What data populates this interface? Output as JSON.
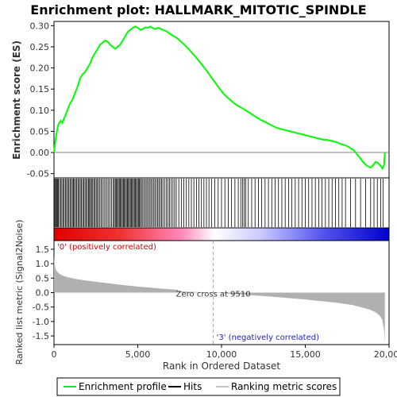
{
  "chart_data": {
    "type": "line",
    "title": "Enrichment plot: HALLMARK_MITOTIC_SPINDLE",
    "enrichment_panel": {
      "ylabel": "Enrichment score (ES)",
      "ylim": [
        -0.06,
        0.31
      ],
      "yticks": [
        -0.05,
        0.0,
        0.05,
        0.1,
        0.15,
        0.2,
        0.25,
        0.3
      ],
      "ytick_labels": [
        "-0.05",
        "0.00",
        "0.05",
        "0.10",
        "0.15",
        "0.20",
        "0.25",
        "0.30"
      ],
      "line_color": "#00ff00",
      "series": [
        {
          "x": [
            0,
            60,
            150,
            250,
            400,
            500,
            650,
            800,
            950,
            1100,
            1250,
            1400,
            1550,
            1700,
            1850,
            2000,
            2150,
            2300,
            2450,
            2600,
            2750,
            2900,
            3050,
            3200,
            3350,
            3500,
            3650,
            3800,
            3950,
            4100,
            4250,
            4400,
            4550,
            4700,
            4850,
            5000,
            5150,
            5300,
            5450,
            5600,
            5750,
            5900,
            6050,
            6200,
            6350,
            6500,
            6650,
            6800,
            6950,
            7100,
            7300,
            7500,
            7700,
            7900,
            8100,
            8300,
            8500,
            8700,
            8900,
            9100,
            9300,
            9500,
            9700,
            9900,
            10100,
            10300,
            10500,
            10700,
            10900,
            11100,
            11300,
            11500,
            11700,
            11900,
            12100,
            12300,
            12500,
            12700,
            12900,
            13100,
            13300,
            13500,
            13700,
            13900,
            14100,
            14300,
            14500,
            14700,
            14900,
            15100,
            15300,
            15500,
            15700,
            15900,
            16100,
            16300,
            16500,
            16700,
            16900,
            17100,
            17300,
            17500,
            17700,
            17900,
            18100,
            18300,
            18500,
            18700,
            18900,
            19050,
            19200,
            19350,
            19500,
            19600,
            19700,
            19750
          ],
          "y": [
            0.0,
            0.02,
            0.045,
            0.065,
            0.075,
            0.07,
            0.085,
            0.1,
            0.115,
            0.125,
            0.14,
            0.155,
            0.175,
            0.185,
            0.19,
            0.2,
            0.21,
            0.225,
            0.235,
            0.245,
            0.255,
            0.26,
            0.265,
            0.262,
            0.255,
            0.25,
            0.245,
            0.25,
            0.255,
            0.265,
            0.275,
            0.285,
            0.29,
            0.295,
            0.298,
            0.295,
            0.29,
            0.292,
            0.296,
            0.295,
            0.298,
            0.294,
            0.292,
            0.295,
            0.293,
            0.29,
            0.288,
            0.284,
            0.28,
            0.276,
            0.272,
            0.265,
            0.258,
            0.25,
            0.242,
            0.233,
            0.224,
            0.214,
            0.204,
            0.194,
            0.183,
            0.172,
            0.161,
            0.15,
            0.14,
            0.132,
            0.125,
            0.118,
            0.112,
            0.108,
            0.103,
            0.098,
            0.093,
            0.088,
            0.083,
            0.078,
            0.074,
            0.07,
            0.066,
            0.062,
            0.058,
            0.056,
            0.054,
            0.052,
            0.05,
            0.048,
            0.046,
            0.044,
            0.042,
            0.04,
            0.038,
            0.036,
            0.034,
            0.032,
            0.03,
            0.03,
            0.028,
            0.026,
            0.024,
            0.02,
            0.018,
            0.015,
            0.01,
            0.005,
            -0.005,
            -0.015,
            -0.025,
            -0.032,
            -0.036,
            -0.03,
            -0.022,
            -0.025,
            -0.032,
            -0.038,
            -0.03,
            0.0
          ]
        }
      ]
    },
    "hits_panel": {
      "hit_positions": [
        20,
        60,
        110,
        160,
        210,
        260,
        330,
        400,
        470,
        540,
        610,
        680,
        750,
        820,
        890,
        960,
        1030,
        1100,
        1160,
        1220,
        1290,
        1360,
        1430,
        1500,
        1570,
        1640,
        1710,
        1780,
        1850,
        1920,
        1990,
        2060,
        2120,
        2180,
        2240,
        2310,
        2380,
        2450,
        2520,
        2590,
        2660,
        2740,
        2820,
        2900,
        2990,
        3080,
        3170,
        3260,
        3350,
        3440,
        3530,
        3600,
        3660,
        3720,
        3780,
        3840,
        3900,
        3960,
        4020,
        4080,
        4140,
        4200,
        4260,
        4320,
        4380,
        4440,
        4500,
        4560,
        4620,
        4680,
        4740,
        4800,
        4860,
        4920,
        4980,
        5040,
        5100,
        5160,
        5220,
        5300,
        5380,
        5460,
        5540,
        5620,
        5700,
        5780,
        5860,
        5940,
        6020,
        6100,
        6180,
        6260,
        6340,
        6420,
        6500,
        6600,
        6700,
        6800,
        6900,
        7000,
        7100,
        7200,
        7300,
        7450,
        7600,
        7750,
        7900,
        8050,
        8200,
        8350,
        8500,
        8650,
        8800,
        8950,
        9100,
        9250,
        9400,
        9600,
        9800,
        10000,
        10200,
        10400,
        10600,
        10800,
        11000,
        11150,
        11250,
        11350,
        11450,
        11600,
        11800,
        12000,
        12200,
        12400,
        12600,
        12800,
        13000,
        13200,
        13400,
        13600,
        13800,
        14000,
        14200,
        14400,
        14600,
        14800,
        15000,
        15200,
        15400,
        15600,
        15800,
        16000,
        16200,
        16400,
        16600,
        16800,
        17000,
        17200,
        17400,
        17700,
        18000,
        18300,
        18600,
        18900,
        19100,
        19300,
        19500,
        19650
      ]
    },
    "ranking_panel": {
      "ylabel": "Ranked list metric (Signal2Noise)",
      "ylim": [
        -1.8,
        1.8
      ],
      "yticks": [
        -1.5,
        -1.0,
        -0.5,
        0.0,
        0.5,
        1.0,
        1.5
      ],
      "ytick_labels": [
        "-1.5",
        "-1.0",
        "-0.5",
        "0.0",
        "0.5",
        "1.0",
        "1.5"
      ],
      "metric_x": [
        0,
        30,
        80,
        150,
        250,
        400,
        600,
        900,
        1300,
        2000,
        3000,
        4000,
        5000,
        6000,
        7000,
        7400,
        7401,
        8000,
        9000,
        9510,
        10000,
        11000,
        12000,
        13000,
        14000,
        15000,
        16000,
        17000,
        17800,
        18300,
        18800,
        19200,
        19450,
        19600,
        19700,
        19750
      ],
      "metric_y": [
        1.3,
        1.0,
        0.85,
        0.75,
        0.68,
        0.62,
        0.57,
        0.52,
        0.47,
        0.41,
        0.34,
        0.27,
        0.21,
        0.16,
        0.11,
        0.1,
        0.04,
        0.03,
        0.01,
        0.0,
        -0.02,
        -0.06,
        -0.1,
        -0.14,
        -0.19,
        -0.24,
        -0.3,
        -0.36,
        -0.43,
        -0.5,
        -0.58,
        -0.68,
        -0.8,
        -0.95,
        -1.3,
        -1.75
      ],
      "zero_cross_label": "Zero cross at 9510",
      "zero_cross_x": 9510,
      "positive_label": "'0' (positively correlated)",
      "negative_label": "'3' (negatively correlated)"
    },
    "xlabel": "Rank in Ordered Dataset",
    "xlim": [
      0,
      20000
    ],
    "xticks": [
      0,
      5000,
      10000,
      15000,
      20000
    ],
    "xtick_labels": [
      "0",
      "5,000",
      "10,000",
      "15,000",
      "20,000"
    ],
    "n_genes": 19750,
    "legend": {
      "placement": "bottom",
      "entries": [
        {
          "label": "Enrichment profile",
          "color": "#00ff00"
        },
        {
          "label": "Hits",
          "color": "#000000"
        },
        {
          "label": "Ranking metric scores",
          "color": "#c0c0c0"
        }
      ]
    },
    "colors": {
      "positive": "#ff0000",
      "neutral": "#ffffff",
      "negative": "#0000ff",
      "metric_fill": "#b0b0b0"
    }
  }
}
